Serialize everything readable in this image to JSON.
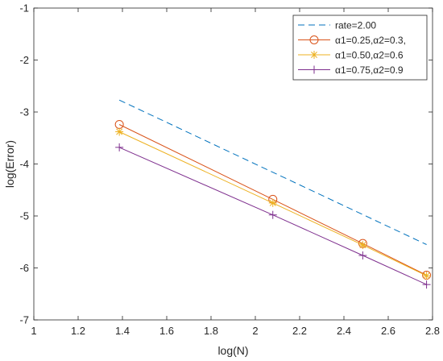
{
  "chart_data": {
    "type": "line",
    "title": "",
    "xlabel": "log(N)",
    "ylabel": "log(Error)",
    "xlim": [
      1,
      2.8
    ],
    "ylim": [
      -7,
      -1
    ],
    "xticks": [
      1,
      1.2,
      1.4,
      1.6,
      1.8,
      2,
      2.2,
      2.4,
      2.6,
      2.8
    ],
    "xtick_labels": [
      "1",
      "1.2",
      "1.4",
      "1.6",
      "1.8",
      "2",
      "2.2",
      "2.4",
      "2.6",
      "2.8"
    ],
    "yticks": [
      -7,
      -6,
      -5,
      -4,
      -3,
      -2,
      -1
    ],
    "ytick_labels": [
      "-7",
      "-6",
      "-5",
      "-4",
      "-3",
      "-2",
      "-1"
    ],
    "grid": false,
    "legend_position": "top-right",
    "series": [
      {
        "name": "rate=2.00",
        "color": "#0072BD",
        "line_style": "dashed",
        "marker": "none",
        "x": [
          1.386,
          2.773
        ],
        "y": [
          -2.77,
          -5.55
        ]
      },
      {
        "name": "α1=0.25,α2=0.3,",
        "color": "#D95319",
        "line_style": "solid",
        "marker": "circle",
        "x": [
          1.386,
          2.079,
          2.485,
          2.773
        ],
        "y": [
          -3.24,
          -4.68,
          -5.53,
          -6.14
        ]
      },
      {
        "name": "α1=0.50,α2=0.6",
        "color": "#EDB120",
        "line_style": "solid",
        "marker": "asterisk",
        "x": [
          1.386,
          2.079,
          2.485,
          2.773
        ],
        "y": [
          -3.38,
          -4.75,
          -5.56,
          -6.15
        ]
      },
      {
        "name": "α1=0.75,α2=0.9",
        "color": "#7E2F8E",
        "line_style": "solid",
        "marker": "plus",
        "x": [
          1.386,
          2.079,
          2.485,
          2.773
        ],
        "y": [
          -3.68,
          -4.98,
          -5.76,
          -6.32
        ]
      }
    ]
  }
}
